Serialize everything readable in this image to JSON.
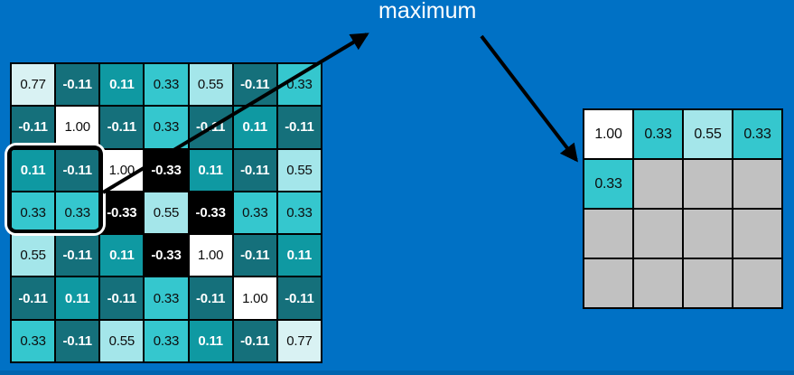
{
  "labels": {
    "maximum": "maximum"
  },
  "colors": {
    "background": "#0071C5",
    "bottom_strip": "#0064AF",
    "grid_line": "#000000",
    "empty_cell": "#C1C1C1",
    "arrow": "#000000",
    "title_text": "#FFFFFF",
    "highlight_border": "#000000",
    "highlight_casing": "#FFFFFF"
  },
  "value_styles": {
    "1.00": {
      "bg": "#FFFFFF",
      "fg": "#0D0D0D",
      "bold": false
    },
    "0.77": {
      "bg": "#D9F2F3",
      "fg": "#0D0D0D",
      "bold": false
    },
    "0.55": {
      "bg": "#A4E6EA",
      "fg": "#0D0D0D",
      "bold": false
    },
    "0.33": {
      "bg": "#35C7CE",
      "fg": "#0D0D0D",
      "bold": false
    },
    "0.11": {
      "bg": "#0F99A2",
      "fg": "#FFFFFF",
      "bold": true
    },
    "-0.11": {
      "bg": "#15707B",
      "fg": "#FFFFFF",
      "bold": true
    },
    "-0.33": {
      "bg": "#000000",
      "fg": "#FFFFFF",
      "bold": true
    },
    "": {
      "bg": "#C1C1C1",
      "fg": "#0D0D0D",
      "bold": false
    }
  },
  "correlation_matrix": {
    "rows": [
      [
        "0.77",
        "-0.11",
        "0.11",
        "0.33",
        "0.55",
        "-0.11",
        "0.33"
      ],
      [
        "-0.11",
        "1.00",
        "-0.11",
        "0.33",
        "-0.11",
        "0.11",
        "-0.11"
      ],
      [
        "0.11",
        "-0.11",
        "1.00",
        "-0.33",
        "0.11",
        "-0.11",
        "0.55"
      ],
      [
        "0.33",
        "0.33",
        "-0.33",
        "0.55",
        "-0.33",
        "0.33",
        "0.33"
      ],
      [
        "0.55",
        "-0.11",
        "0.11",
        "-0.33",
        "1.00",
        "-0.11",
        "0.11"
      ],
      [
        "-0.11",
        "0.11",
        "-0.11",
        "0.33",
        "-0.11",
        "1.00",
        "-0.11"
      ],
      [
        "0.33",
        "-0.11",
        "0.55",
        "0.33",
        "0.11",
        "-0.11",
        "0.77"
      ]
    ],
    "highlighted_window": {
      "rows": [
        3,
        4
      ],
      "cols": [
        1,
        2
      ]
    }
  },
  "output_grid": {
    "rows": [
      [
        "1.00",
        "0.33",
        "0.55",
        "0.33"
      ],
      [
        "0.33",
        "",
        "",
        ""
      ],
      [
        "",
        "",
        "",
        ""
      ],
      [
        "",
        "",
        "",
        ""
      ]
    ]
  }
}
